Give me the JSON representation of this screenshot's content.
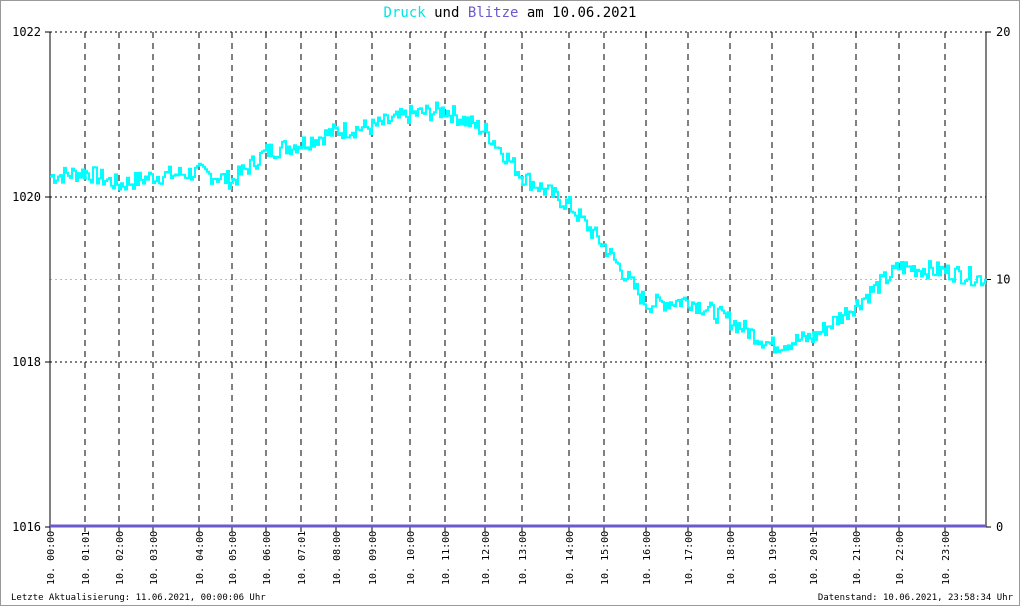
{
  "title": {
    "part1": "Druck",
    "part2": " und ",
    "part3": "Blitze",
    "part4": " am 10.06.2021"
  },
  "footer": {
    "left": "Letzte Aktualisierung: 11.06.2021, 00:00:06 Uhr",
    "right": "Datenstand: 10.06.2021, 23:58:34 Uhr"
  },
  "colors": {
    "druck": "#00ffff",
    "blitze": "#6a5acd",
    "grid": "#000000",
    "text": "#000000"
  },
  "chart_data": {
    "type": "line",
    "title": "Druck und Blitze am 10.06.2021",
    "ylim_left": [
      1016,
      1022
    ],
    "yticks_left": [
      "1016",
      "1018",
      "1020",
      "1022"
    ],
    "ylim_right": [
      0,
      20
    ],
    "yticks_right": [
      "0",
      "10",
      "20"
    ],
    "grid": true,
    "xtick_labels": [
      "10. 00:00",
      "10. 01:01",
      "10. 02:00",
      "10. 03:00",
      "10. 04:00",
      "10. 05:00",
      "10. 06:00",
      "10. 07:01",
      "10. 08:00",
      "10. 09:00",
      "10. 10:00",
      "10. 11:00",
      "10. 12:00",
      "10. 13:00",
      "10. 14:00",
      "10. 15:00",
      "10. 16:00",
      "10. 17:00",
      "10. 18:00",
      "10. 19:00",
      "10. 20:01",
      "10. 21:00",
      "10. 22:00",
      "10. 23:00"
    ],
    "series": [
      {
        "name": "Druck",
        "axis": "left",
        "x": [
          "00:00",
          "01:01",
          "02:00",
          "03:00",
          "04:00",
          "05:00",
          "06:00",
          "07:01",
          "08:00",
          "09:00",
          "10:00",
          "11:00",
          "12:00",
          "13:00",
          "14:00",
          "15:00",
          "16:00",
          "17:00",
          "18:00",
          "19:00",
          "20:01",
          "21:00",
          "22:00",
          "23:00",
          "23:58"
        ],
        "values": [
          1020.25,
          1020.3,
          1020.15,
          1020.25,
          1020.3,
          1020.2,
          1020.55,
          1020.65,
          1020.8,
          1020.85,
          1021.0,
          1021.05,
          1020.8,
          1020.25,
          1019.9,
          1019.4,
          1018.7,
          1018.75,
          1018.5,
          1018.2,
          1018.3,
          1018.7,
          1019.15,
          1019.1,
          1019.0
        ]
      },
      {
        "name": "Blitze",
        "axis": "right",
        "values": [
          0
        ]
      }
    ]
  }
}
